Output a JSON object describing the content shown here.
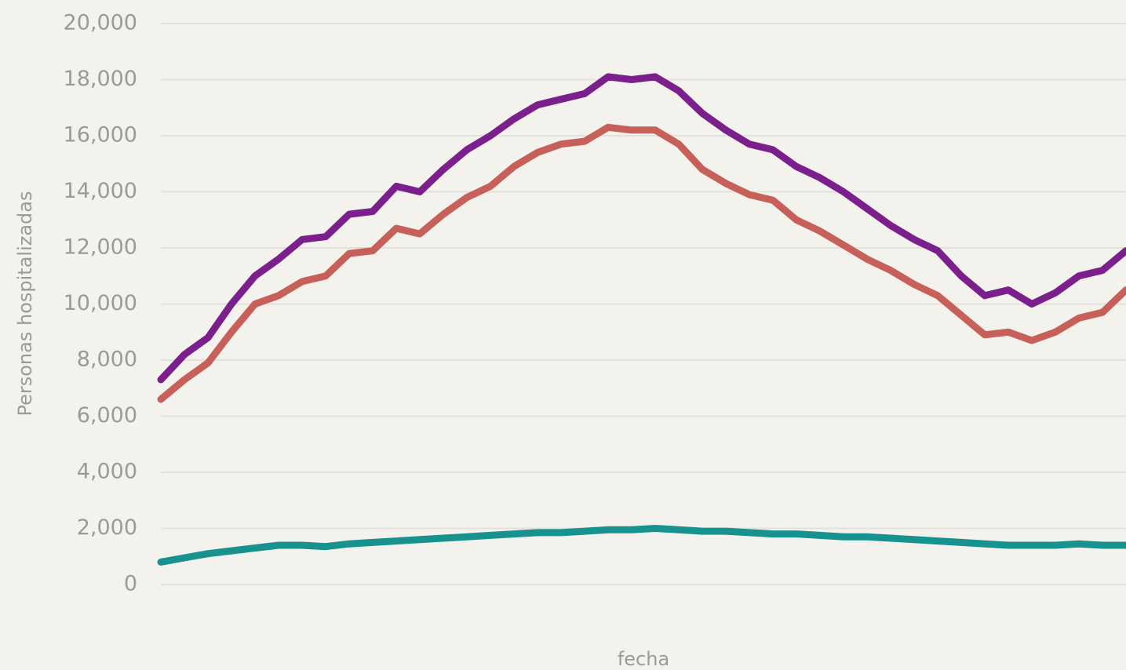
{
  "chart_data": {
    "type": "line",
    "y_label": "Personas hospitalizadas",
    "x_label": "fecha",
    "categories": [
      null,
      null,
      null,
      null,
      null,
      null,
      null,
      null,
      null,
      null,
      null,
      null,
      null,
      null,
      null,
      null,
      null,
      null,
      null,
      null,
      null,
      null,
      null,
      null,
      null,
      null,
      null,
      null,
      null,
      null,
      null,
      null,
      null,
      null,
      null,
      null,
      null,
      null,
      null,
      null,
      null,
      null
    ],
    "series": [
      {
        "color": "#7b1f8c",
        "values": [
          7300,
          8200,
          8800,
          10000,
          11000,
          11600,
          12300,
          12400,
          13200,
          13300,
          14200,
          14000,
          14800,
          15500,
          16000,
          16600,
          17100,
          17300,
          17500,
          18100,
          18000,
          18100,
          17600,
          16800,
          16200,
          15700,
          15500,
          14900,
          14500,
          14000,
          13400,
          12800,
          12300,
          11900,
          11000,
          10300,
          10500,
          10000,
          10400,
          11000,
          11200,
          11900
        ]
      },
      {
        "color": "#c8605a",
        "values": [
          6600,
          7300,
          7900,
          9000,
          10000,
          10300,
          10800,
          11000,
          11800,
          11900,
          12700,
          12500,
          13200,
          13800,
          14200,
          14900,
          15400,
          15700,
          15800,
          16300,
          16200,
          16200,
          15700,
          14800,
          14300,
          13900,
          13700,
          13000,
          12600,
          12100,
          11600,
          11200,
          10700,
          10300,
          9600,
          8900,
          9000,
          8700,
          9000,
          9500,
          9700,
          10500
        ]
      },
      {
        "color": "#17928e",
        "values": [
          800,
          950,
          1100,
          1200,
          1300,
          1400,
          1400,
          1350,
          1450,
          1500,
          1550,
          1600,
          1650,
          1700,
          1750,
          1800,
          1850,
          1850,
          1900,
          1950,
          1950,
          2000,
          1950,
          1900,
          1900,
          1850,
          1800,
          1800,
          1750,
          1700,
          1700,
          1650,
          1600,
          1550,
          1500,
          1450,
          1400,
          1400,
          1400,
          1450,
          1400,
          1400
        ]
      }
    ],
    "ylim": [
      0,
      20000
    ],
    "yticks": [
      0,
      {
        "value": 2000,
        "label": "2,000"
      },
      {
        "value": 4000,
        "label": "4,000"
      },
      {
        "value": 6000,
        "label": "6,000"
      },
      {
        "value": 8000,
        "label": "8,000"
      },
      {
        "value": 10000,
        "label": "10,000"
      },
      {
        "value": 12000,
        "label": "12,000"
      },
      {
        "value": 14000,
        "label": "14,000"
      },
      {
        "value": 16000,
        "label": "16,000"
      },
      {
        "value": 18000,
        "label": "18,000"
      },
      {
        "value": 20000,
        "label": "20,000"
      }
    ],
    "grid": true
  }
}
